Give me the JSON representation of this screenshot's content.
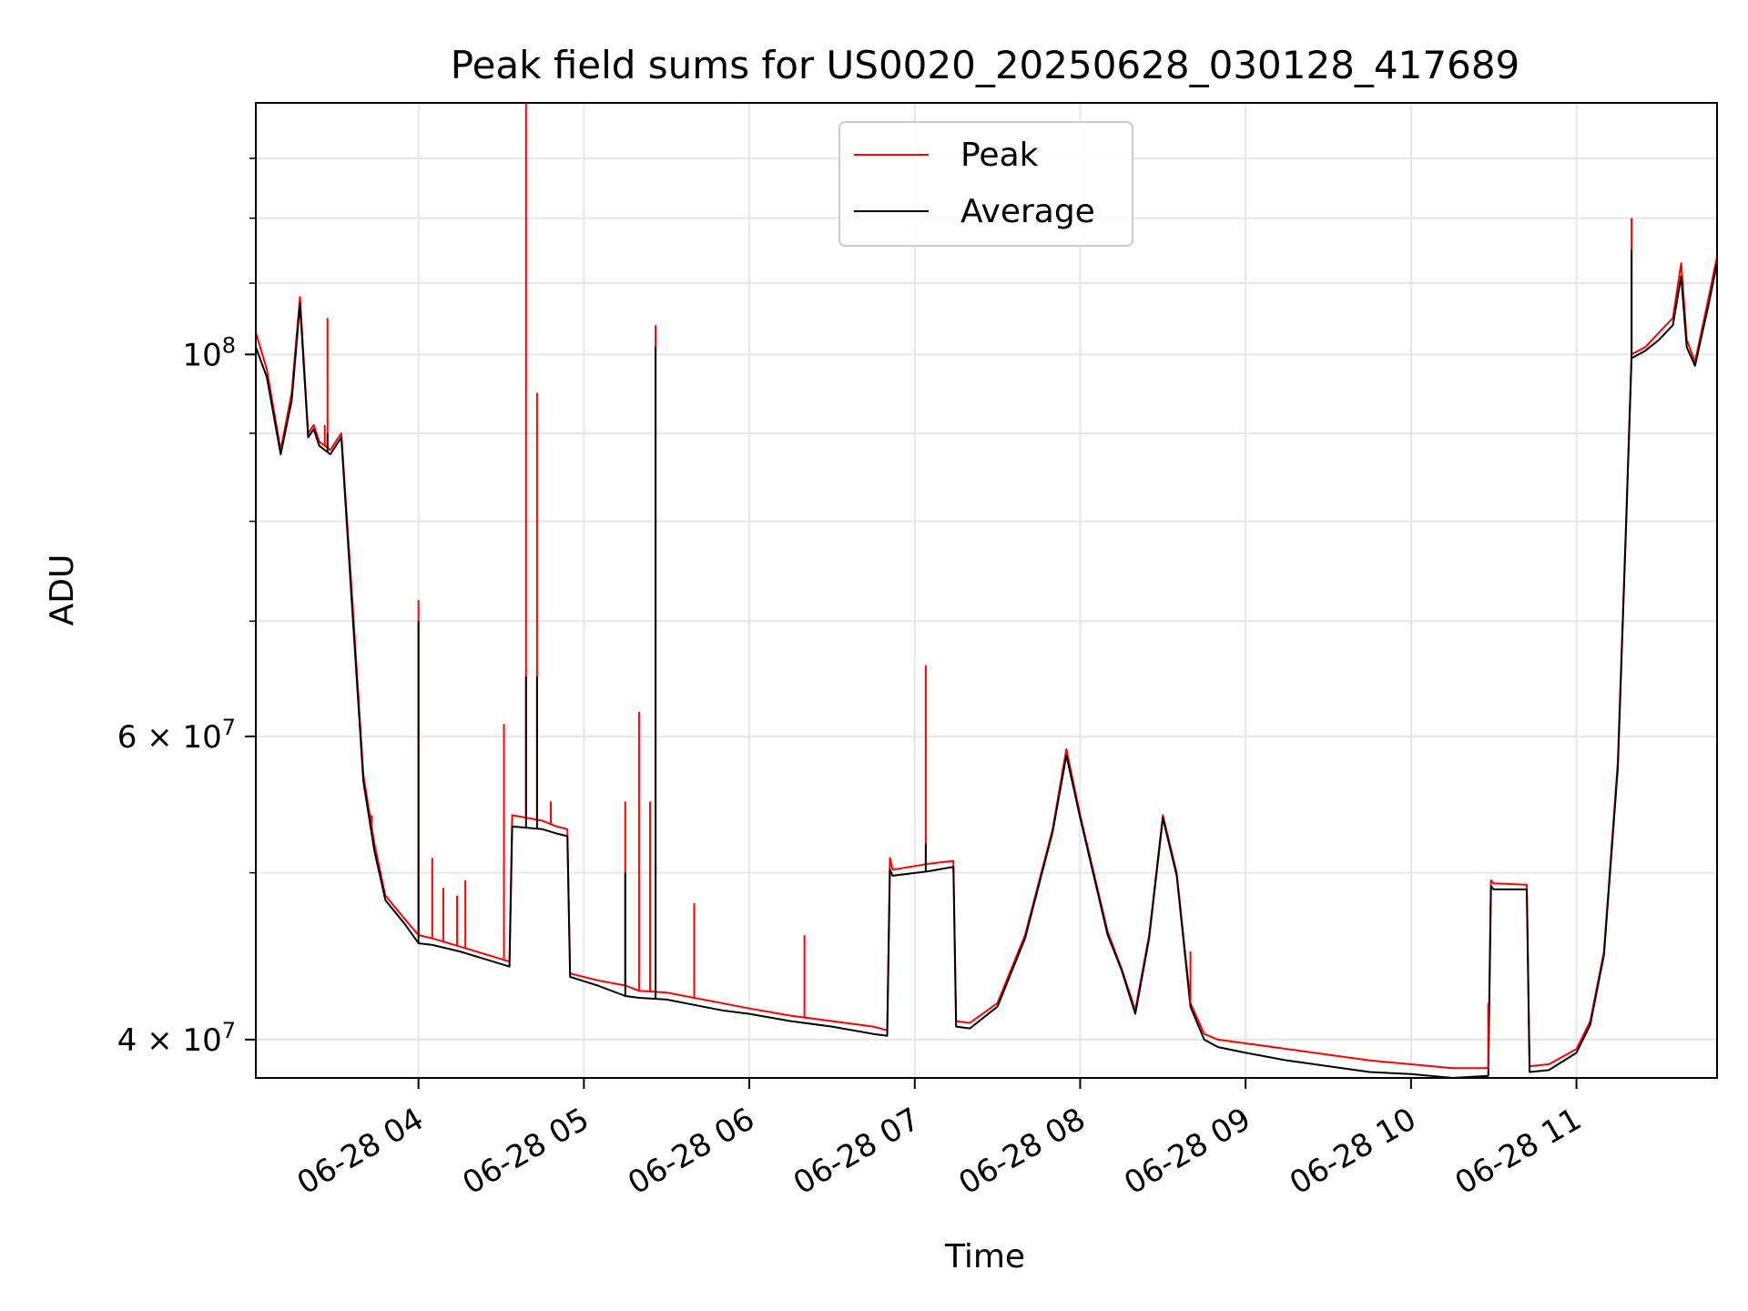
{
  "chart_data": {
    "type": "line",
    "title": "Peak field sums for US0020_20250628_030128_417689",
    "xlabel": "Time",
    "ylabel": "ADU",
    "y_scale": "log",
    "ylim": [
      38000000,
      140000000
    ],
    "xlim": [
      "2025-06-28 03:01",
      "2025-06-28 11:51"
    ],
    "grid": true,
    "legend_position": "top-center",
    "x_ticks": [
      "06-28 04",
      "06-28 05",
      "06-28 06",
      "06-28 07",
      "06-28 08",
      "06-28 09",
      "06-28 10",
      "06-28 11"
    ],
    "y_ticks": [
      {
        "label": "10",
        "sup": "8",
        "value": 100000000
      },
      {
        "label": "6 × 10",
        "sup": "7",
        "value": 60000000
      },
      {
        "label": "4 × 10",
        "sup": "7",
        "value": 40000000
      }
    ],
    "series": [
      {
        "name": "Peak",
        "color": "#ff0000",
        "x": [
          "03:01",
          "03:05",
          "03:10",
          "03:14",
          "03:17",
          "03:20",
          "03:22",
          "03:24",
          "03:28",
          "03:32",
          "03:36",
          "03:40",
          "03:44",
          "03:48",
          "03:55",
          "04:00",
          "04:05",
          "04:15",
          "04:25",
          "04:33",
          "04:34",
          "04:45",
          "04:50",
          "04:54",
          "04:55",
          "05:05",
          "05:15",
          "05:20",
          "05:30",
          "05:40",
          "05:50",
          "06:00",
          "06:15",
          "06:30",
          "06:45",
          "06:50",
          "06:51",
          "06:52",
          "07:05",
          "07:14",
          "07:15",
          "07:20",
          "07:30",
          "07:40",
          "07:50",
          "07:55",
          "08:00",
          "08:10",
          "08:15",
          "08:20",
          "08:25",
          "08:30",
          "08:35",
          "08:40",
          "08:45",
          "08:50",
          "09:00",
          "09:15",
          "09:30",
          "09:45",
          "10:00",
          "10:15",
          "10:28",
          "10:29",
          "10:30",
          "10:42",
          "10:43",
          "10:50",
          "11:00",
          "11:05",
          "11:10",
          "11:15",
          "11:18",
          "11:20",
          "11:25",
          "11:30",
          "11:35",
          "11:38",
          "11:40",
          "11:43",
          "11:48",
          "11:51"
        ],
        "values": [
          103000000,
          98000000,
          88000000,
          95000000,
          108000000,
          90000000,
          91000000,
          89000000,
          88000000,
          90000000,
          72000000,
          57000000,
          52000000,
          48500000,
          47000000,
          46000000,
          45800000,
          45300000,
          44800000,
          44400000,
          54000000,
          53600000,
          53200000,
          53000000,
          43700000,
          43300000,
          43000000,
          42700000,
          42600000,
          42300000,
          42000000,
          41700000,
          41300000,
          41000000,
          40700000,
          40500000,
          51000000,
          50200000,
          50600000,
          50800000,
          41000000,
          40900000,
          42000000,
          46000000,
          53000000,
          59000000,
          54000000,
          46200000,
          44000000,
          41600000,
          46000000,
          54000000,
          50000000,
          42000000,
          40300000,
          40000000,
          39800000,
          39500000,
          39200000,
          38900000,
          38700000,
          38500000,
          38500000,
          49500000,
          49300000,
          49200000,
          38600000,
          38700000,
          39500000,
          41000000,
          45000000,
          58000000,
          80000000,
          100000000,
          101000000,
          103000000,
          105000000,
          113000000,
          102000000,
          99000000,
          108000000,
          114000000
        ]
      },
      {
        "name": "Average",
        "color": "#000000",
        "x": [
          "03:01",
          "03:05",
          "03:10",
          "03:14",
          "03:17",
          "03:20",
          "03:22",
          "03:24",
          "03:28",
          "03:32",
          "03:36",
          "03:40",
          "03:44",
          "03:48",
          "03:55",
          "04:00",
          "04:05",
          "04:15",
          "04:25",
          "04:33",
          "04:34",
          "04:45",
          "04:50",
          "04:54",
          "04:55",
          "05:05",
          "05:15",
          "05:20",
          "05:30",
          "05:40",
          "05:50",
          "06:00",
          "06:15",
          "06:30",
          "06:45",
          "06:50",
          "06:51",
          "06:52",
          "07:05",
          "07:14",
          "07:15",
          "07:20",
          "07:30",
          "07:40",
          "07:50",
          "07:55",
          "08:00",
          "08:10",
          "08:15",
          "08:20",
          "08:25",
          "08:30",
          "08:35",
          "08:40",
          "08:45",
          "08:50",
          "09:00",
          "09:15",
          "09:30",
          "09:45",
          "10:00",
          "10:15",
          "10:28",
          "10:29",
          "10:30",
          "10:42",
          "10:43",
          "10:50",
          "11:00",
          "11:05",
          "11:10",
          "11:15",
          "11:18",
          "11:20",
          "11:25",
          "11:30",
          "11:35",
          "11:38",
          "11:40",
          "11:43",
          "11:48",
          "11:51"
        ],
        "values": [
          101000000,
          97000000,
          87500000,
          94000000,
          107000000,
          89500000,
          90500000,
          88500000,
          87500000,
          89500000,
          71000000,
          56500000,
          51500000,
          48200000,
          46700000,
          45500000,
          45400000,
          45000000,
          44500000,
          44100000,
          53200000,
          53000000,
          52700000,
          52500000,
          43500000,
          43000000,
          42400000,
          42300000,
          42200000,
          41900000,
          41600000,
          41400000,
          41000000,
          40700000,
          40300000,
          40200000,
          50200000,
          49800000,
          50100000,
          50400000,
          40700000,
          40600000,
          41800000,
          45800000,
          52800000,
          58500000,
          53800000,
          46000000,
          43900000,
          41400000,
          45800000,
          53800000,
          49800000,
          41800000,
          40000000,
          39600000,
          39300000,
          38900000,
          38600000,
          38300000,
          38200000,
          38000000,
          38100000,
          49100000,
          48900000,
          48900000,
          38300000,
          38400000,
          39300000,
          40800000,
          44800000,
          57500000,
          79500000,
          99500000,
          100500000,
          102000000,
          104000000,
          111000000,
          101000000,
          98500000,
          107000000,
          113000000
        ]
      }
    ],
    "spikes": [
      {
        "series": "Peak",
        "x": "03:27",
        "value": 105000000
      },
      {
        "series": "Peak",
        "x": "03:26",
        "value": 91000000
      },
      {
        "series": "Peak",
        "x": "03:43",
        "value": 54000000
      },
      {
        "series": "Peak",
        "x": "04:00",
        "value": 72000000
      },
      {
        "series": "Peak",
        "x": "04:05",
        "value": 51000000
      },
      {
        "series": "Peak",
        "x": "04:09",
        "value": 49000000
      },
      {
        "series": "Peak",
        "x": "04:14",
        "value": 48500000
      },
      {
        "series": "Peak",
        "x": "04:17",
        "value": 49500000
      },
      {
        "series": "Peak",
        "x": "04:31",
        "value": 61000000
      },
      {
        "series": "Peak",
        "x": "04:39",
        "value": 140000000
      },
      {
        "series": "Peak",
        "x": "04:43",
        "value": 95000000
      },
      {
        "series": "Peak",
        "x": "04:48",
        "value": 55000000
      },
      {
        "series": "Peak",
        "x": "05:15",
        "value": 55000000
      },
      {
        "series": "Peak",
        "x": "05:20",
        "value": 62000000
      },
      {
        "series": "Peak",
        "x": "05:24",
        "value": 55000000
      },
      {
        "series": "Peak",
        "x": "05:26",
        "value": 104000000
      },
      {
        "series": "Peak",
        "x": "05:40",
        "value": 48000000
      },
      {
        "series": "Peak",
        "x": "06:20",
        "value": 46000000
      },
      {
        "series": "Peak",
        "x": "07:04",
        "value": 66000000
      },
      {
        "series": "Peak",
        "x": "08:40",
        "value": 45000000
      },
      {
        "series": "Peak",
        "x": "10:28",
        "value": 42000000
      },
      {
        "series": "Peak",
        "x": "11:20",
        "value": 120000000
      },
      {
        "series": "Average",
        "x": "03:27",
        "value": 90000000
      },
      {
        "series": "Average",
        "x": "04:00",
        "value": 70000000
      },
      {
        "series": "Average",
        "x": "04:39",
        "value": 65000000
      },
      {
        "series": "Average",
        "x": "04:43",
        "value": 65000000
      },
      {
        "series": "Average",
        "x": "05:15",
        "value": 50000000
      },
      {
        "series": "Average",
        "x": "05:26",
        "value": 101000000
      },
      {
        "series": "Average",
        "x": "07:04",
        "value": 52000000
      },
      {
        "series": "Average",
        "x": "11:20",
        "value": 115000000
      }
    ]
  }
}
